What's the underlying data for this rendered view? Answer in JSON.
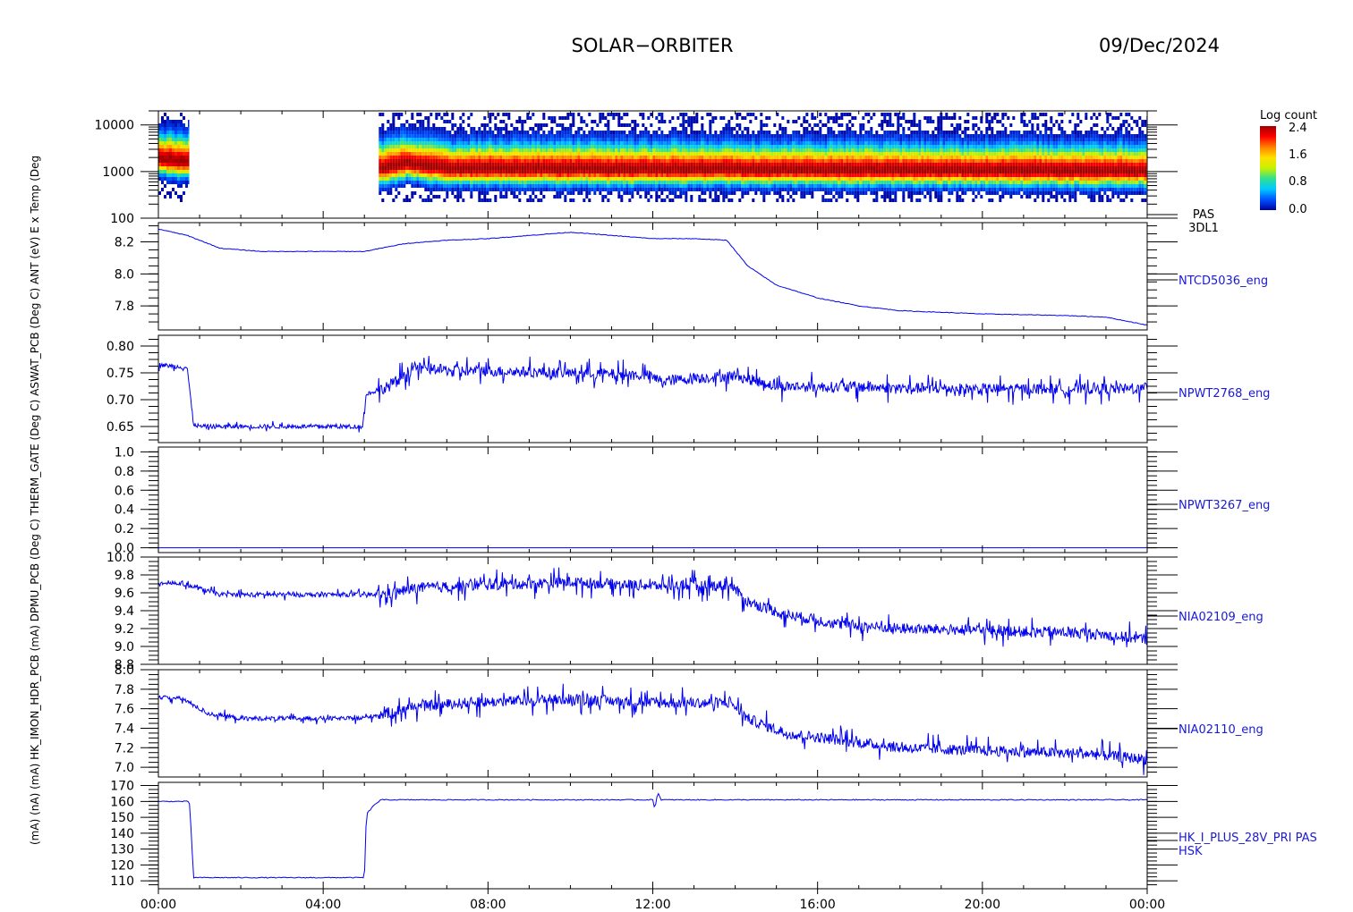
{
  "header": {
    "mission": "SOLAR−ORBITER",
    "date": "09/Dec/2024"
  },
  "x_ticks": [
    "00:00",
    "04:00",
    "08:00",
    "12:00",
    "16:00",
    "20:00",
    "00:00"
  ],
  "colorbar": {
    "title": "Log count",
    "ticks": [
      "2.4",
      "1.6",
      "0.8",
      "0.0"
    ],
    "colors": [
      "#0000a0",
      "#0050ff",
      "#00c8ff",
      "#30e090",
      "#c8f000",
      "#ffe000",
      "#ff8000",
      "#ff0000",
      "#a00000"
    ]
  },
  "y_axis_title_overlap": "(mA)   (nA)   (mA) HK_IMON_HDR_PCB (mA) DPMU_PCB (Deg C) THERM_GATE (Deg C) ASWAT_PCB (Deg C) ANT (eV) E    x Temp (Deg",
  "line_color": "#0000ee",
  "chart_data": [
    {
      "type": "heatmap",
      "label_lines": [
        "PAS",
        "3DL1"
      ],
      "y_scale": "log",
      "ylim": [
        100,
        20000
      ],
      "y_ticks": [
        "10000",
        "1000",
        "100"
      ],
      "x_range_hours": [
        0,
        24
      ],
      "data_segments_hours": [
        [
          0.0,
          0.75
        ],
        [
          5.35,
          24.0
        ]
      ],
      "gap_hours": [
        0.75,
        5.35
      ],
      "peak_energy_eV": [
        [
          0.0,
          2000
        ],
        [
          0.5,
          1800
        ],
        [
          5.5,
          1300
        ],
        [
          6.0,
          1600
        ],
        [
          7.0,
          1250
        ],
        [
          12.0,
          1200
        ],
        [
          18.0,
          1150
        ],
        [
          24.0,
          1100
        ]
      ],
      "max_log_count": 2.4
    },
    {
      "type": "line",
      "label": "NTCD5036_eng",
      "ylim": [
        7.65,
        8.32
      ],
      "y_ticks": [
        "8.2",
        "8.0",
        "7.8"
      ],
      "x": [
        0,
        0.7,
        1.5,
        2.5,
        4,
        5,
        6,
        7,
        8,
        9,
        10,
        11,
        12,
        13,
        13.8,
        14.3,
        15,
        16,
        17,
        18,
        20,
        22,
        23,
        24
      ],
      "y": [
        8.28,
        8.24,
        8.16,
        8.14,
        8.14,
        8.14,
        8.19,
        8.21,
        8.22,
        8.24,
        8.26,
        8.24,
        8.22,
        8.22,
        8.21,
        8.05,
        7.93,
        7.85,
        7.8,
        7.77,
        7.75,
        7.74,
        7.73,
        7.68
      ]
    },
    {
      "type": "line",
      "label": "NPWT2768_eng",
      "ylim": [
        0.62,
        0.82
      ],
      "y_ticks": [
        "0.80",
        "0.75",
        "0.70",
        "0.65"
      ],
      "x": [
        0,
        0.7,
        0.85,
        1,
        4.95,
        5.05,
        5.6,
        6.2,
        7,
        10,
        11.9,
        12.2,
        14.0,
        15,
        20,
        24
      ],
      "y": [
        0.765,
        0.76,
        0.655,
        0.65,
        0.65,
        0.71,
        0.725,
        0.76,
        0.755,
        0.75,
        0.745,
        0.735,
        0.745,
        0.725,
        0.72,
        0.72
      ]
    },
    {
      "type": "line",
      "label": "NPWT3267_eng",
      "ylim": [
        -0.05,
        1.05
      ],
      "y_ticks": [
        "1.0",
        "0.8",
        "0.6",
        "0.4",
        "0.2",
        "0.0"
      ],
      "x": [
        0,
        24
      ],
      "y": [
        0.0,
        0.0
      ]
    },
    {
      "type": "line",
      "label": "NIA02109_eng",
      "ylim": [
        8.8,
        10.0
      ],
      "y_ticks": [
        "10.0",
        "9.8",
        "9.6",
        "9.4",
        "9.2",
        "9.0",
        "8.8"
      ],
      "x": [
        0,
        0.6,
        1.5,
        4.9,
        5.5,
        6.2,
        7.5,
        10,
        12,
        13.9,
        14.3,
        15.2,
        16.5,
        18,
        20,
        22.5,
        24
      ],
      "y": [
        9.72,
        9.7,
        9.58,
        9.58,
        9.58,
        9.65,
        9.68,
        9.72,
        9.68,
        9.68,
        9.5,
        9.36,
        9.25,
        9.2,
        9.18,
        9.15,
        9.08
      ]
    },
    {
      "type": "line",
      "label": "NIA02110_eng",
      "ylim": [
        6.9,
        8.0
      ],
      "y_ticks": [
        "8.0",
        "7.8",
        "7.6",
        "7.4",
        "7.2",
        "7.0"
      ],
      "x": [
        0,
        0.6,
        1.2,
        2,
        4.9,
        5.5,
        6.2,
        7.5,
        10,
        12,
        13.9,
        14.3,
        15.2,
        16.5,
        18,
        20,
        22.5,
        24
      ],
      "y": [
        7.72,
        7.7,
        7.55,
        7.5,
        7.5,
        7.55,
        7.62,
        7.66,
        7.7,
        7.66,
        7.66,
        7.5,
        7.35,
        7.28,
        7.2,
        7.17,
        7.14,
        7.08
      ]
    },
    {
      "type": "line",
      "label_lines": [
        "HK_I_PLUS_28V_PRI PAS",
        "HSK"
      ],
      "ylim": [
        105,
        172
      ],
      "y_ticks": [
        "170",
        "160",
        "150",
        "140",
        "130",
        "120",
        "110"
      ],
      "x": [
        0,
        0.75,
        0.8,
        0.85,
        4.95,
        5.0,
        5.05,
        5.25,
        5.4,
        12.0,
        12.05,
        12.12,
        12.2,
        24
      ],
      "y": [
        160,
        160,
        140,
        112,
        112,
        112,
        152,
        158,
        161,
        161,
        155,
        166,
        161,
        161
      ]
    }
  ]
}
